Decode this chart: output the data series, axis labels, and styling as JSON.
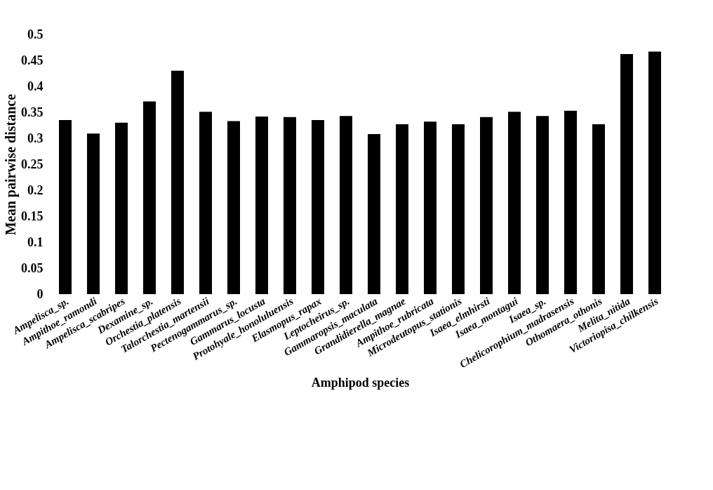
{
  "chart_data": {
    "type": "bar",
    "xlabel": "Amphipod species",
    "ylabel": "Mean pairwise distance",
    "categories": [
      "Ampelisca_sp.",
      "Ampithoe_ramondi",
      "Ampelisca_scabripes",
      "Dexamine_sp.",
      "Orchestia_platensis",
      "Talorchestia_martensii",
      "Pectenogammarus_sp.",
      "Gammarus_locusta",
      "Protohyale_honoluluensis",
      "Elasmopus_rapax",
      "Leptocheirus_sp.",
      "Gammaropsis_maculata",
      "Grandidierella_magnae",
      "Ampithoe_rubricata",
      "Microdeutopus_stationis",
      "Isaea_elmhirsti",
      "Isaea_montagui",
      "Isaea_sp.",
      "Chelicorophium_madrasensis",
      "Othomaera_othonis",
      "Melita_nitida",
      "Victoriopisa_chilkensis"
    ],
    "values": [
      0.335,
      0.309,
      0.33,
      0.371,
      0.43,
      0.351,
      0.333,
      0.342,
      0.341,
      0.335,
      0.343,
      0.308,
      0.327,
      0.332,
      0.327,
      0.341,
      0.351,
      0.343,
      0.353,
      0.327,
      0.462,
      0.467
    ],
    "color": "#000000",
    "ylim": [
      0,
      0.5
    ],
    "yticks": [
      0,
      0.05,
      0.1,
      0.15,
      0.2,
      0.25,
      0.3,
      0.35,
      0.4,
      0.45,
      0.5
    ],
    "grid": false
  }
}
